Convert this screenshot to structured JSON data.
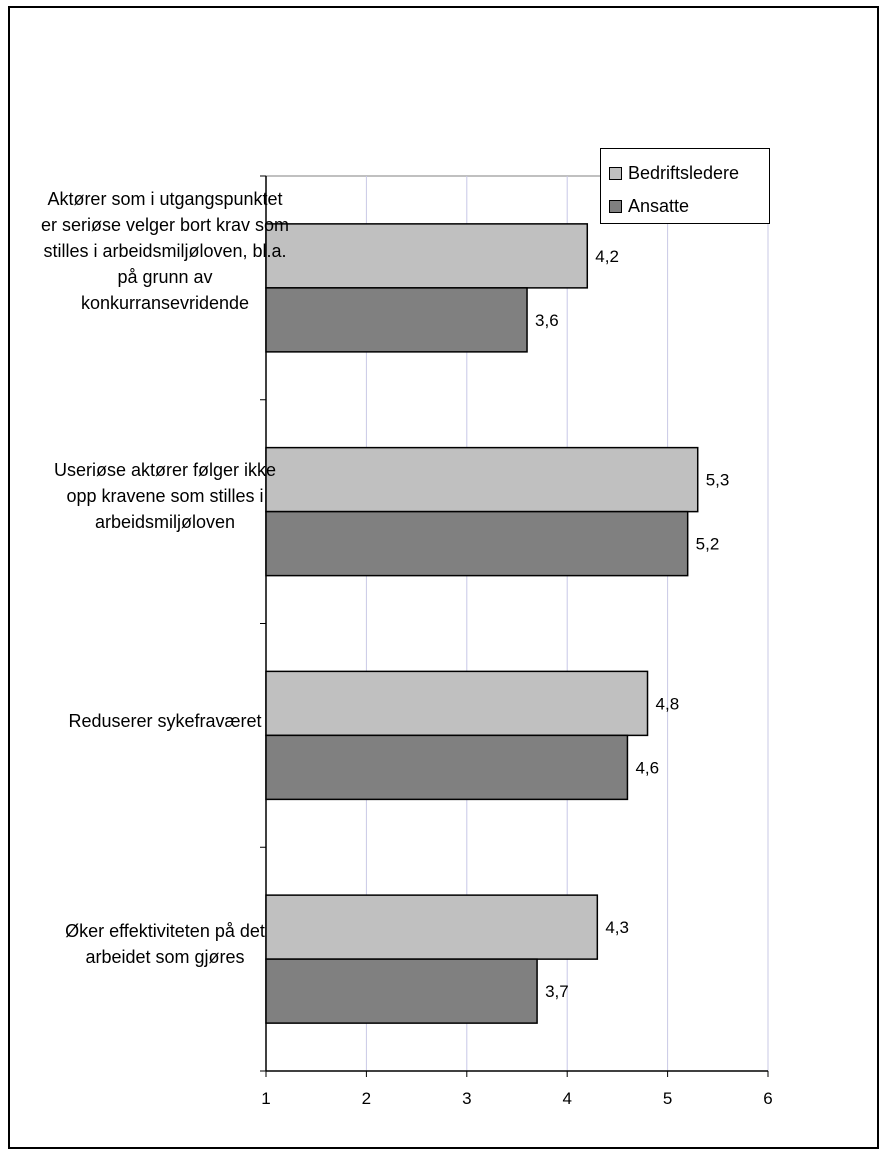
{
  "chart_data": {
    "type": "bar",
    "orientation": "horizontal",
    "categories": [
      "Aktører som i utgangspunktet er seriøse velger bort krav som stilles i arbeidsmiljøloven, bl.a. på grunn av konkurransevridende",
      "Useriøse aktører følger ikke opp kravene som stilles i arbeidsmiljøloven",
      "Reduserer sykefraværet",
      "Øker effektiviteten på det arbeidet som gjøres"
    ],
    "series": [
      {
        "name": "Bedriftsledere",
        "color": "#c0c0c0",
        "values": [
          4.2,
          5.3,
          4.8,
          4.3
        ],
        "labels": [
          "4,2",
          "5,3",
          "4,8",
          "4,3"
        ]
      },
      {
        "name": "Ansatte",
        "color": "#808080",
        "values": [
          3.6,
          5.2,
          4.6,
          3.7
        ],
        "labels": [
          "3,6",
          "5,2",
          "4,6",
          "3,7"
        ]
      }
    ],
    "xlim": [
      1,
      6
    ],
    "xticks": [
      "1",
      "2",
      "3",
      "4",
      "5",
      "6"
    ],
    "grid": true,
    "gridline_color": "#c8c8e6",
    "legend_position": "top-right"
  }
}
